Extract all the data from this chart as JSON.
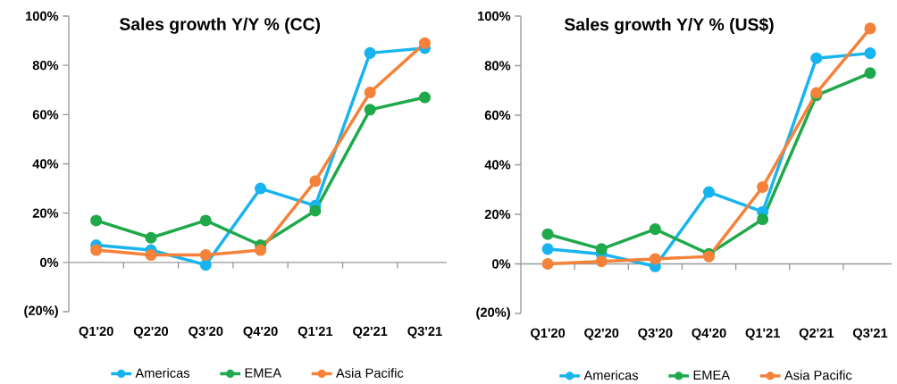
{
  "chart_data": [
    {
      "type": "line",
      "title": "Sales growth Y/Y % (CC)",
      "categories": [
        "Q1'20",
        "Q2'20",
        "Q3'20",
        "Q4'20",
        "Q1'21",
        "Q2'21",
        "Q3'21"
      ],
      "series": [
        {
          "name": "Americas",
          "color": "#17b4ef",
          "values": [
            7,
            5,
            -1,
            30,
            23,
            85,
            87
          ]
        },
        {
          "name": "EMEA",
          "color": "#1fa94b",
          "values": [
            17,
            10,
            17,
            7,
            21,
            62,
            67
          ]
        },
        {
          "name": "Asia Pacific",
          "color": "#f5823a",
          "values": [
            5,
            3,
            3,
            5,
            33,
            69,
            89
          ]
        }
      ],
      "ylim": [
        -20,
        100
      ],
      "yticks": [
        {
          "value": -20,
          "label": "(20%)"
        },
        {
          "value": 0,
          "label": "0%"
        },
        {
          "value": 20,
          "label": "20%"
        },
        {
          "value": 40,
          "label": "40%"
        },
        {
          "value": 60,
          "label": "60%"
        },
        {
          "value": 80,
          "label": "80%"
        },
        {
          "value": 100,
          "label": "100%"
        }
      ],
      "legend": "bottom",
      "marker": "circle",
      "line_style": "solid"
    },
    {
      "type": "line",
      "title": "Sales growth Y/Y % (US$)",
      "categories": [
        "Q1'20",
        "Q2'20",
        "Q3'20",
        "Q4'20",
        "Q1'21",
        "Q2'21",
        "Q3'21"
      ],
      "series": [
        {
          "name": "Americas",
          "color": "#17b4ef",
          "values": [
            6,
            4,
            -1,
            29,
            21,
            83,
            85
          ]
        },
        {
          "name": "EMEA",
          "color": "#1fa94b",
          "values": [
            12,
            6,
            14,
            4,
            18,
            68,
            77
          ]
        },
        {
          "name": "Asia Pacific",
          "color": "#f5823a",
          "values": [
            0,
            1,
            2,
            3,
            31,
            69,
            95
          ]
        }
      ],
      "ylim": [
        -20,
        100
      ],
      "yticks": [
        {
          "value": -20,
          "label": "(20%)"
        },
        {
          "value": 0,
          "label": "0%"
        },
        {
          "value": 20,
          "label": "20%"
        },
        {
          "value": 40,
          "label": "40%"
        },
        {
          "value": 60,
          "label": "60%"
        },
        {
          "value": 80,
          "label": "80%"
        },
        {
          "value": 100,
          "label": "100%"
        }
      ],
      "legend": "bottom",
      "marker": "circle",
      "line_style": "solid"
    }
  ]
}
